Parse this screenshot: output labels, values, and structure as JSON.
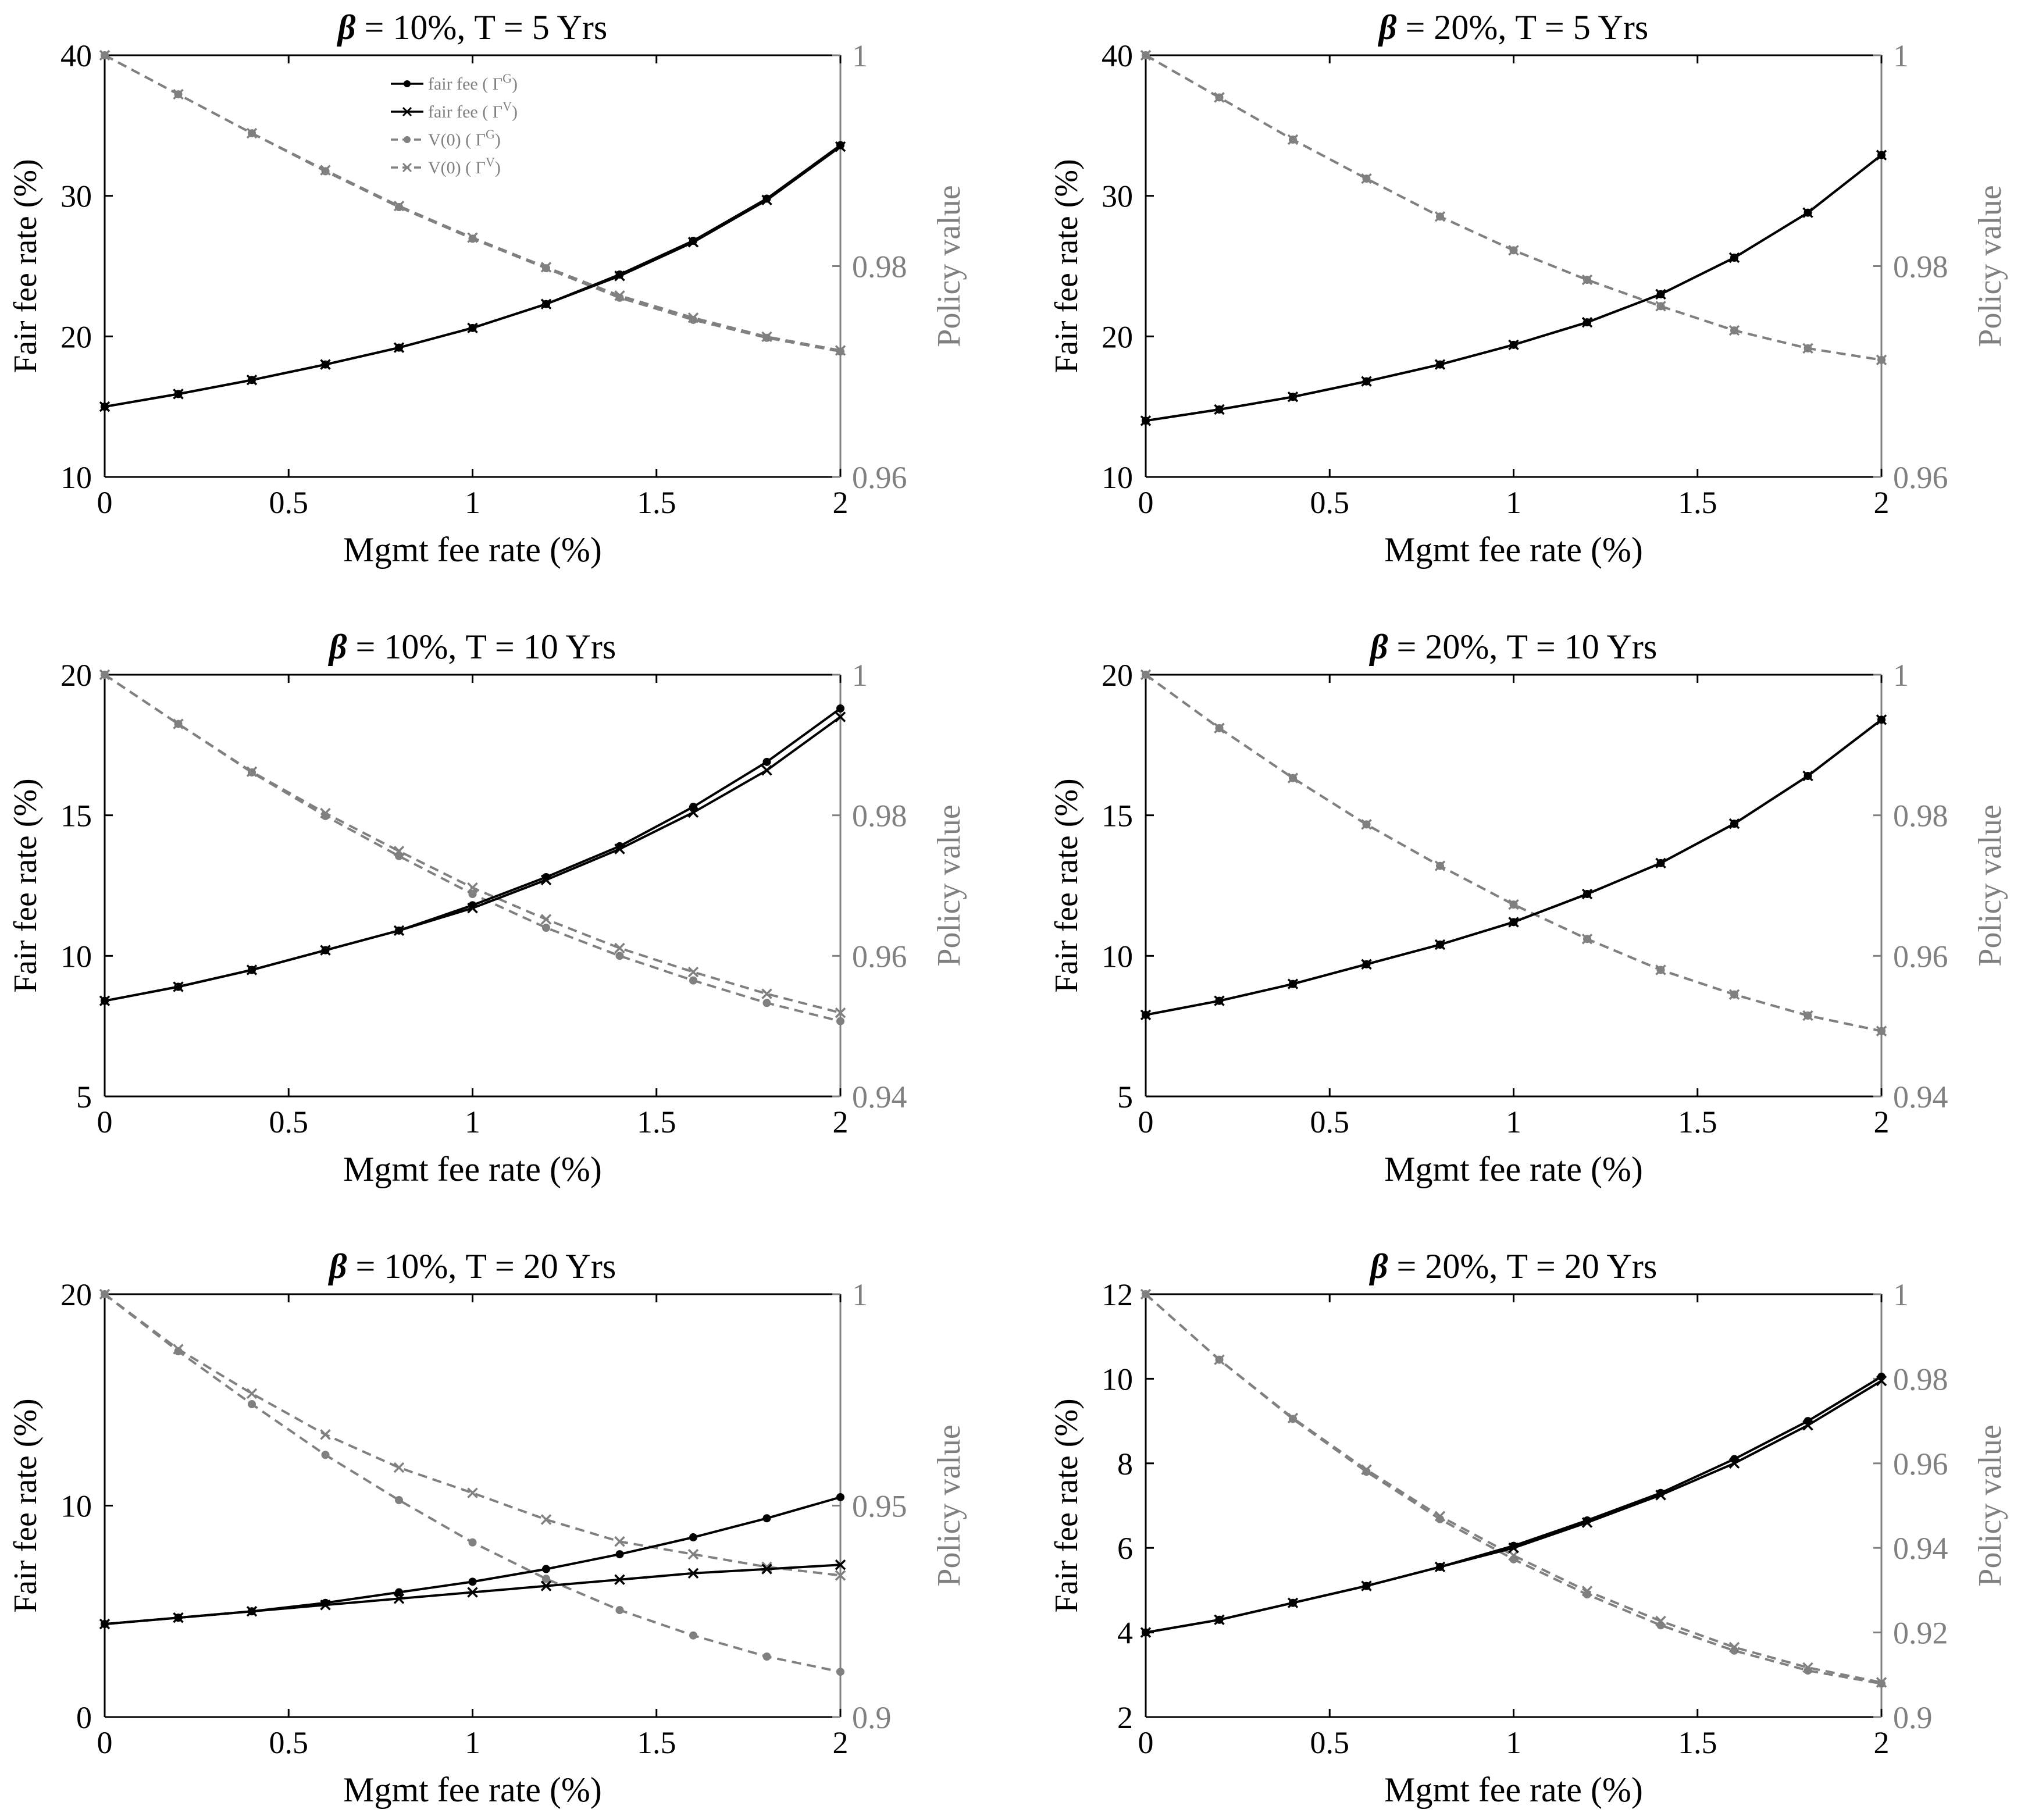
{
  "chart_data": [
    {
      "type": "line",
      "title_prefix": "β",
      "title": " = 10%, T = 5 Yrs",
      "xlabel": "Mgmt fee rate (%)",
      "ylabel": "Fair fee rate (%)",
      "y2label": "Policy value",
      "xlim": [
        0,
        2
      ],
      "ylim": [
        10,
        40
      ],
      "y2lim": [
        0.96,
        1
      ],
      "xticks": [
        "0",
        "0.5",
        "1",
        "1.5",
        "2"
      ],
      "yticks": [
        "10",
        "20",
        "30",
        "40"
      ],
      "y2ticks": [
        "0.96",
        "0.98",
        "1"
      ],
      "x": [
        0,
        0.2,
        0.4,
        0.6,
        0.8,
        1.0,
        1.2,
        1.4,
        1.6,
        1.8,
        2.0
      ],
      "series": [
        {
          "name": "fair fee ( Γ^G)",
          "axis": "left",
          "style": "solid",
          "marker": "dot",
          "color": "#000000",
          "values": [
            15.0,
            15.9,
            16.9,
            18.0,
            19.2,
            20.6,
            22.3,
            24.4,
            26.8,
            29.8,
            33.6
          ]
        },
        {
          "name": "fair fee ( Γ^V)",
          "axis": "left",
          "style": "solid",
          "marker": "x",
          "color": "#000000",
          "values": [
            15.0,
            15.9,
            16.9,
            18.0,
            19.2,
            20.6,
            22.3,
            24.3,
            26.7,
            29.7,
            33.5
          ]
        },
        {
          "name": "V(0) ( Γ^G)",
          "axis": "right",
          "style": "dashed",
          "marker": "dot",
          "color": "#808080",
          "values": [
            1.0,
            0.9963,
            0.9926,
            0.989,
            0.9856,
            0.9826,
            0.9798,
            0.977,
            0.9749,
            0.9732,
            0.9719
          ]
        },
        {
          "name": "V(0) ( Γ^V)",
          "axis": "right",
          "style": "dashed",
          "marker": "x",
          "color": "#808080",
          "values": [
            1.0,
            0.9963,
            0.9926,
            0.9891,
            0.9857,
            0.9827,
            0.9799,
            0.9772,
            0.9751,
            0.9733,
            0.972
          ]
        }
      ],
      "legend": "upper-left inside",
      "legend_entries": [
        {
          "main": "fair fee (",
          "sym": "Γ",
          "sup": "G",
          "close": ")"
        },
        {
          "main": "fair fee (",
          "sym": "Γ",
          "sup": "V",
          "close": ")"
        },
        {
          "main": "V(0) (",
          "sym": "Γ",
          "sup": "G",
          "close": ")"
        },
        {
          "main": "V(0) (",
          "sym": "Γ",
          "sup": "V",
          "close": ")"
        }
      ]
    },
    {
      "type": "line",
      "title_prefix": "β",
      "title": " = 20%, T = 5 Yrs",
      "xlabel": "Mgmt fee rate (%)",
      "ylabel": "Fair fee rate (%)",
      "y2label": "Policy value",
      "xlim": [
        0,
        2
      ],
      "ylim": [
        10,
        40
      ],
      "y2lim": [
        0.96,
        1
      ],
      "xticks": [
        "0",
        "0.5",
        "1",
        "1.5",
        "2"
      ],
      "yticks": [
        "10",
        "20",
        "30",
        "40"
      ],
      "y2ticks": [
        "0.96",
        "0.98",
        "1"
      ],
      "x": [
        0,
        0.2,
        0.4,
        0.6,
        0.8,
        1.0,
        1.2,
        1.4,
        1.6,
        1.8,
        2.0
      ],
      "series": [
        {
          "name": "fair fee ( Γ^G)",
          "axis": "left",
          "style": "solid",
          "marker": "dot",
          "color": "#000000",
          "values": [
            14.0,
            14.8,
            15.7,
            16.8,
            18.0,
            19.4,
            21.0,
            23.0,
            25.6,
            28.8,
            32.9
          ]
        },
        {
          "name": "fair fee ( Γ^V)",
          "axis": "left",
          "style": "solid",
          "marker": "x",
          "color": "#000000",
          "values": [
            14.0,
            14.8,
            15.7,
            16.8,
            18.0,
            19.4,
            21.0,
            23.0,
            25.6,
            28.8,
            32.9
          ]
        },
        {
          "name": "V(0) ( Γ^G)",
          "axis": "right",
          "style": "dashed",
          "marker": "dot",
          "color": "#808080",
          "values": [
            1.0,
            0.996,
            0.992,
            0.9883,
            0.9847,
            0.9815,
            0.9787,
            0.9762,
            0.9739,
            0.9722,
            0.9711
          ]
        },
        {
          "name": "V(0) ( Γ^V)",
          "axis": "right",
          "style": "dashed",
          "marker": "x",
          "color": "#808080",
          "values": [
            1.0,
            0.996,
            0.992,
            0.9883,
            0.9847,
            0.9815,
            0.9787,
            0.9762,
            0.9739,
            0.9722,
            0.9711
          ]
        }
      ]
    },
    {
      "type": "line",
      "title_prefix": "β",
      "title": " = 10%, T = 10 Yrs",
      "xlabel": "Mgmt fee rate (%)",
      "ylabel": "Fair fee rate (%)",
      "y2label": "Policy value",
      "xlim": [
        0,
        2
      ],
      "ylim": [
        5,
        20
      ],
      "y2lim": [
        0.94,
        1
      ],
      "xticks": [
        "0",
        "0.5",
        "1",
        "1.5",
        "2"
      ],
      "yticks": [
        "5",
        "10",
        "15",
        "20"
      ],
      "y2ticks": [
        "0.94",
        "0.96",
        "0.98",
        "1"
      ],
      "x": [
        0,
        0.2,
        0.4,
        0.6,
        0.8,
        1.0,
        1.2,
        1.4,
        1.6,
        1.8,
        2.0
      ],
      "series": [
        {
          "name": "fair fee ( Γ^G)",
          "axis": "left",
          "style": "solid",
          "marker": "dot",
          "color": "#000000",
          "values": [
            8.4,
            8.9,
            9.5,
            10.2,
            10.9,
            11.8,
            12.8,
            13.9,
            15.3,
            16.9,
            18.8
          ]
        },
        {
          "name": "fair fee ( Γ^V)",
          "axis": "left",
          "style": "solid",
          "marker": "x",
          "color": "#000000",
          "values": [
            8.4,
            8.9,
            9.5,
            10.2,
            10.9,
            11.7,
            12.7,
            13.8,
            15.1,
            16.6,
            18.5
          ]
        },
        {
          "name": "V(0) ( Γ^G)",
          "axis": "right",
          "style": "dashed",
          "marker": "dot",
          "color": "#808080",
          "values": [
            1.0,
            0.993,
            0.9861,
            0.9799,
            0.9742,
            0.9688,
            0.964,
            0.96,
            0.9565,
            0.9533,
            0.9507
          ]
        },
        {
          "name": "V(0) ( Γ^V)",
          "axis": "right",
          "style": "dashed",
          "marker": "x",
          "color": "#808080",
          "values": [
            1.0,
            0.993,
            0.9862,
            0.9803,
            0.9749,
            0.9697,
            0.9652,
            0.9611,
            0.9577,
            0.9546,
            0.9519
          ]
        }
      ]
    },
    {
      "type": "line",
      "title_prefix": "β",
      "title": " = 20%, T = 10 Yrs",
      "xlabel": "Mgmt fee rate (%)",
      "ylabel": "Fair fee rate (%)",
      "y2label": "Policy value",
      "xlim": [
        0,
        2
      ],
      "ylim": [
        5,
        20
      ],
      "y2lim": [
        0.94,
        1
      ],
      "xticks": [
        "0",
        "0.5",
        "1",
        "1.5",
        "2"
      ],
      "yticks": [
        "5",
        "10",
        "15",
        "20"
      ],
      "y2ticks": [
        "0.94",
        "0.96",
        "0.98",
        "1"
      ],
      "x": [
        0,
        0.2,
        0.4,
        0.6,
        0.8,
        1.0,
        1.2,
        1.4,
        1.6,
        1.8,
        2.0
      ],
      "series": [
        {
          "name": "fair fee ( Γ^G)",
          "axis": "left",
          "style": "solid",
          "marker": "dot",
          "color": "#000000",
          "values": [
            7.9,
            8.4,
            9.0,
            9.7,
            10.4,
            11.2,
            12.2,
            13.3,
            14.7,
            16.4,
            18.4
          ]
        },
        {
          "name": "fair fee ( Γ^V)",
          "axis": "left",
          "style": "solid",
          "marker": "x",
          "color": "#000000",
          "values": [
            7.9,
            8.4,
            9.0,
            9.7,
            10.4,
            11.2,
            12.2,
            13.3,
            14.7,
            16.4,
            18.4
          ]
        },
        {
          "name": "V(0) ( Γ^G)",
          "axis": "right",
          "style": "dashed",
          "marker": "dot",
          "color": "#808080",
          "values": [
            1.0,
            0.9924,
            0.9853,
            0.9787,
            0.9728,
            0.9673,
            0.9624,
            0.958,
            0.9545,
            0.9515,
            0.9493
          ]
        },
        {
          "name": "V(0) ( Γ^V)",
          "axis": "right",
          "style": "dashed",
          "marker": "x",
          "color": "#808080",
          "values": [
            1.0,
            0.9924,
            0.9853,
            0.9787,
            0.9728,
            0.9673,
            0.9624,
            0.958,
            0.9545,
            0.9515,
            0.9493
          ]
        }
      ]
    },
    {
      "type": "line",
      "title_prefix": "β",
      "title": " = 10%, T = 20 Yrs",
      "xlabel": "Mgmt fee rate (%)",
      "ylabel": "Fair fee rate (%)",
      "y2label": "Policy value",
      "xlim": [
        0,
        2
      ],
      "ylim": [
        0,
        20
      ],
      "y2lim": [
        0.9,
        1
      ],
      "xticks": [
        "0",
        "0.5",
        "1",
        "1.5",
        "2"
      ],
      "yticks": [
        "0",
        "10",
        "20"
      ],
      "y2ticks": [
        "0.9",
        "0.95",
        "1"
      ],
      "x": [
        0,
        0.2,
        0.4,
        0.6,
        0.8,
        1.0,
        1.2,
        1.4,
        1.6,
        1.8,
        2.0
      ],
      "series": [
        {
          "name": "fair fee ( Γ^G)",
          "axis": "left",
          "style": "solid",
          "marker": "dot",
          "color": "#000000",
          "values": [
            4.4,
            4.7,
            5.0,
            5.4,
            5.9,
            6.4,
            7.0,
            7.7,
            8.5,
            9.4,
            10.4
          ]
        },
        {
          "name": "fair fee ( Γ^V)",
          "axis": "left",
          "style": "solid",
          "marker": "x",
          "color": "#000000",
          "values": [
            4.4,
            4.7,
            5.0,
            5.3,
            5.6,
            5.9,
            6.2,
            6.5,
            6.8,
            7.0,
            7.2
          ]
        },
        {
          "name": "V(0) ( Γ^G)",
          "axis": "right",
          "style": "dashed",
          "marker": "dot",
          "color": "#808080",
          "values": [
            1.0,
            0.9865,
            0.974,
            0.962,
            0.9513,
            0.9413,
            0.9327,
            0.9253,
            0.9193,
            0.9143,
            0.9107
          ]
        },
        {
          "name": "V(0) ( Γ^V)",
          "axis": "right",
          "style": "dashed",
          "marker": "x",
          "color": "#808080",
          "values": [
            1.0,
            0.987,
            0.9765,
            0.9668,
            0.959,
            0.953,
            0.9467,
            0.9415,
            0.9385,
            0.9355,
            0.9335
          ]
        }
      ]
    },
    {
      "type": "line",
      "title_prefix": "β",
      "title": " = 20%, T = 20 Yrs",
      "xlabel": "Mgmt fee rate (%)",
      "ylabel": "Fair fee rate (%)",
      "y2label": "Policy value",
      "xlim": [
        0,
        2
      ],
      "ylim": [
        2,
        12
      ],
      "y2lim": [
        0.9,
        1
      ],
      "xticks": [
        "0",
        "0.5",
        "1",
        "1.5",
        "2"
      ],
      "yticks": [
        "2",
        "4",
        "6",
        "8",
        "10",
        "12"
      ],
      "y2ticks": [
        "0.9",
        "0.92",
        "0.94",
        "0.96",
        "0.98",
        "1"
      ],
      "x": [
        0,
        0.2,
        0.4,
        0.6,
        0.8,
        1.0,
        1.2,
        1.4,
        1.6,
        1.8,
        2.0
      ],
      "series": [
        {
          "name": "fair fee ( Γ^G)",
          "axis": "left",
          "style": "solid",
          "marker": "dot",
          "color": "#000000",
          "values": [
            4.0,
            4.3,
            4.7,
            5.1,
            5.55,
            6.05,
            6.65,
            7.3,
            8.1,
            9.0,
            10.05
          ]
        },
        {
          "name": "fair fee ( Γ^V)",
          "axis": "left",
          "style": "solid",
          "marker": "x",
          "color": "#000000",
          "values": [
            4.0,
            4.3,
            4.7,
            5.1,
            5.55,
            6.0,
            6.6,
            7.25,
            8.0,
            8.9,
            9.95
          ]
        },
        {
          "name": "V(0) ( Γ^G)",
          "axis": "right",
          "style": "dashed",
          "marker": "dot",
          "color": "#808080",
          "values": [
            1.0,
            0.9845,
            0.9705,
            0.958,
            0.9468,
            0.9373,
            0.929,
            0.9217,
            0.9157,
            0.911,
            0.9079
          ]
        },
        {
          "name": "V(0) ( Γ^V)",
          "axis": "right",
          "style": "dashed",
          "marker": "x",
          "color": "#808080",
          "values": [
            1.0,
            0.9845,
            0.9707,
            0.9585,
            0.9475,
            0.9382,
            0.9298,
            0.9227,
            0.9165,
            0.9117,
            0.9082
          ]
        }
      ]
    }
  ]
}
